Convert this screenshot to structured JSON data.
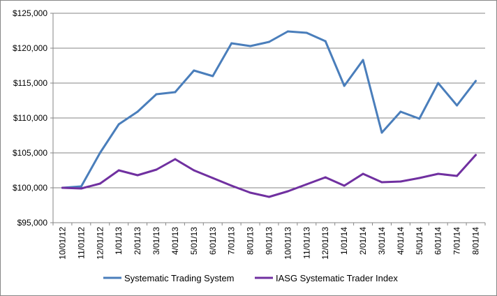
{
  "chart_data": {
    "type": "line",
    "title": "",
    "xlabel": "",
    "ylabel": "",
    "ylim": [
      95000,
      125000
    ],
    "y_ticks": [
      95000,
      100000,
      105000,
      110000,
      115000,
      120000,
      125000
    ],
    "y_tick_labels": [
      "$95,000",
      "$100,000",
      "$105,000",
      "$110,000",
      "$115,000",
      "$120,000",
      "$125,000"
    ],
    "grid": "horizontal",
    "legend_position": "bottom",
    "categories": [
      "10/01/12",
      "11/01/12",
      "12/01/12",
      "1/01/13",
      "2/01/13",
      "3/01/13",
      "4/01/13",
      "5/01/13",
      "6/01/13",
      "7/01/13",
      "8/01/13",
      "9/01/13",
      "10/01/13",
      "11/01/13",
      "12/01/13",
      "1/01/14",
      "2/01/14",
      "3/01/14",
      "4/01/14",
      "5/01/14",
      "6/01/14",
      "7/01/14",
      "8/01/14"
    ],
    "series": [
      {
        "name": "Systematic Trading System",
        "color": "#4a7ebb",
        "values": [
          100000,
          100200,
          105000,
          109100,
          110900,
          113400,
          113700,
          116800,
          116000,
          120700,
          120300,
          120900,
          122400,
          122200,
          121000,
          114600,
          118300,
          107900,
          110900,
          109900,
          115000,
          111800,
          115300
        ]
      },
      {
        "name": "IASG Systematic Trader Index",
        "color": "#7030a0",
        "values": [
          100000,
          99900,
          100600,
          102500,
          101800,
          102600,
          104100,
          102500,
          101400,
          100300,
          99300,
          98700,
          99500,
          100500,
          101500,
          100300,
          102000,
          100800,
          100900,
          101400,
          102000,
          101700,
          104700
        ]
      }
    ]
  }
}
